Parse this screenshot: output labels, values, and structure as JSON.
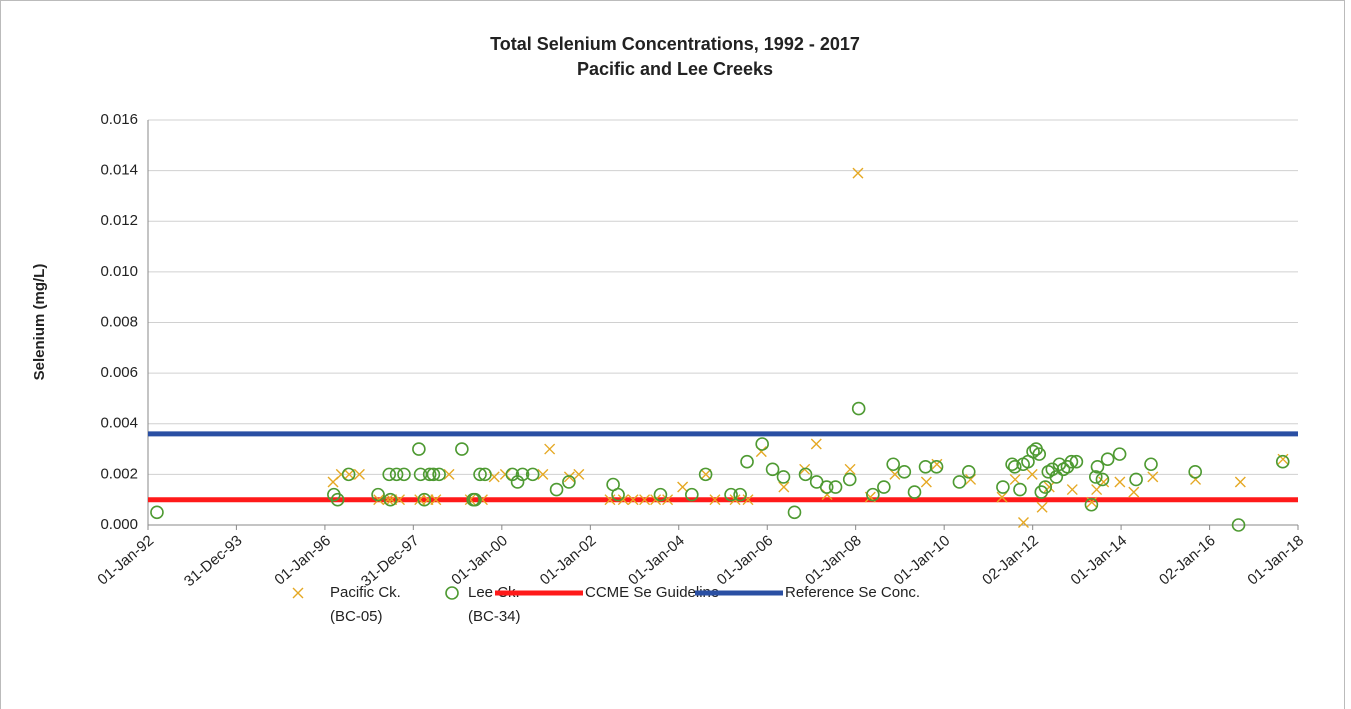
{
  "chart_data": {
    "type": "scatter",
    "title": "Total Selenium Concentrations, 1992 - 2017",
    "subtitle": "Pacific and Lee Creeks",
    "y_label": "Selenium (mg/L)",
    "xlim": [
      "1992-01-01",
      "2018-01-01"
    ],
    "xticks": [
      {
        "value": "1992-01-01",
        "label": "01-Jan-92"
      },
      {
        "value": "1993-12-31",
        "label": "31-Dec-93"
      },
      {
        "value": "1996-01-01",
        "label": "01-Jan-96"
      },
      {
        "value": "1997-12-31",
        "label": "31-Dec-97"
      },
      {
        "value": "2000-01-01",
        "label": "01-Jan-00"
      },
      {
        "value": "2002-01-01",
        "label": "01-Jan-02"
      },
      {
        "value": "2004-01-01",
        "label": "01-Jan-04"
      },
      {
        "value": "2006-01-01",
        "label": "01-Jan-06"
      },
      {
        "value": "2008-01-01",
        "label": "01-Jan-08"
      },
      {
        "value": "2010-01-01",
        "label": "01-Jan-10"
      },
      {
        "value": "2012-01-02",
        "label": "02-Jan-12"
      },
      {
        "value": "2014-01-01",
        "label": "01-Jan-14"
      },
      {
        "value": "2016-01-02",
        "label": "02-Jan-16"
      },
      {
        "value": "2018-01-01",
        "label": "01-Jan-18"
      }
    ],
    "ylim": [
      0,
      0.016
    ],
    "yticks": [
      {
        "value": 0,
        "label": "0.000"
      },
      {
        "value": 0.002,
        "label": "0.002"
      },
      {
        "value": 0.004,
        "label": "0.004"
      },
      {
        "value": 0.006,
        "label": "0.006"
      },
      {
        "value": 0.008,
        "label": "0.008"
      },
      {
        "value": 0.01,
        "label": "0.010"
      },
      {
        "value": 0.012,
        "label": "0.012"
      },
      {
        "value": 0.014,
        "label": "0.014"
      },
      {
        "value": 0.016,
        "label": "0.016"
      }
    ],
    "grid": true,
    "series": [
      {
        "name": [
          "Pacific Ck.",
          "(BC-05)"
        ],
        "marker": "x",
        "color": "#e5a823",
        "x": [
          "1996-03-08",
          "1996-05-15",
          "1996-07-20",
          "1996-10-12",
          "1997-03-20",
          "1997-06-05",
          "1997-07-05",
          "1997-09-08",
          "1998-02-22",
          "1998-05-01",
          "1998-07-05",
          "1998-10-22",
          "1999-04-15",
          "1999-07-25",
          "1999-10-30",
          "2000-01-30",
          "2000-12-05",
          "2001-01-30",
          "2001-07-12",
          "2001-09-28",
          "2002-06-12",
          "2002-09-30",
          "2002-12-20",
          "2003-03-25",
          "2003-06-24",
          "2003-10-01",
          "2004-02-02",
          "2004-08-12",
          "2004-10-26",
          "2005-04-10",
          "2005-07-26",
          "2005-11-13",
          "2006-05-18",
          "2006-11-06",
          "2007-02-10",
          "2007-05-10",
          "2007-11-16",
          "2008-01-20",
          "2008-05-01",
          "2008-11-20",
          "2009-08-07",
          "2009-11-02",
          "2010-08-07",
          "2011-04-24",
          "2011-08-10",
          "2011-10-18",
          "2011-12-29",
          "2012-03-20",
          "2012-05-18",
          "2012-11-24",
          "2013-05-04",
          "2013-06-13",
          "2013-08-10",
          "2013-12-22",
          "2014-04-16",
          "2014-09-20",
          "2015-09-08",
          "2016-09-12",
          "2017-08-30"
        ],
        "values": [
          0.0017,
          0.002,
          0.002,
          0.002,
          0.001,
          0.001,
          0.001,
          0.001,
          0.001,
          0.001,
          0.001,
          0.002,
          0.001,
          0.001,
          0.0019,
          0.002,
          0.002,
          0.003,
          0.0019,
          0.002,
          0.001,
          0.001,
          0.001,
          0.001,
          0.001,
          0.001,
          0.0015,
          0.002,
          0.001,
          0.001,
          0.001,
          0.0029,
          0.0015,
          0.0022,
          0.0032,
          0.0012,
          0.0022,
          0.0139,
          0.0011,
          0.002,
          0.0017,
          0.0024,
          0.0018,
          0.0011,
          0.0018,
          0.0001,
          0.002,
          0.0007,
          0.0015,
          0.0014,
          0.0009,
          0.0014,
          0.0017,
          0.0017,
          0.0013,
          0.0019,
          0.0018,
          0.0017,
          0.0026
        ]
      },
      {
        "name": [
          "Lee Ck.",
          "(BC-34)"
        ],
        "marker": "o",
        "color": "#4e9a32",
        "x": [
          "1992-03-15",
          "1996-03-15",
          "1996-04-15",
          "1996-07-15",
          "1997-03-15",
          "1997-06-15",
          "1997-06-25",
          "1997-08-15",
          "1997-10-15",
          "1998-02-15",
          "1998-03-01",
          "1998-04-01",
          "1998-05-15",
          "1998-06-15",
          "1998-08-01",
          "1999-02-05",
          "1999-05-10",
          "1999-05-25",
          "1999-07-05",
          "1999-08-15",
          "2000-03-28",
          "2000-05-10",
          "2000-06-20",
          "2000-09-12",
          "2001-03-28",
          "2001-07-08",
          "2002-07-08",
          "2002-08-18",
          "2003-08-03",
          "2004-04-18",
          "2004-08-10",
          "2005-03-08",
          "2005-05-22",
          "2005-07-18",
          "2005-11-20",
          "2006-02-14",
          "2006-05-15",
          "2006-08-14",
          "2006-11-13",
          "2007-02-13",
          "2007-05-07",
          "2007-07-19",
          "2007-11-13",
          "2008-01-26",
          "2008-05-22",
          "2008-08-21",
          "2008-11-06",
          "2009-02-06",
          "2009-05-01",
          "2009-07-31",
          "2009-10-30",
          "2010-05-07",
          "2010-07-23",
          "2011-05-01",
          "2011-07-16",
          "2011-08-07",
          "2011-09-19",
          "2011-10-15",
          "2011-11-24",
          "2012-01-05",
          "2012-01-30",
          "2012-02-25",
          "2012-03-13",
          "2012-04-15",
          "2012-05-10",
          "2012-06-12",
          "2012-07-15",
          "2012-08-10",
          "2012-09-12",
          "2012-10-15",
          "2012-11-17",
          "2012-12-28",
          "2013-05-01",
          "2013-06-06",
          "2013-06-20",
          "2013-07-31",
          "2013-09-12",
          "2013-12-20",
          "2014-05-05",
          "2014-09-05",
          "2015-09-05",
          "2016-08-28",
          "2017-08-28"
        ],
        "values": [
          0.0005,
          0.0012,
          0.001,
          0.002,
          0.0012,
          0.002,
          0.001,
          0.002,
          0.002,
          0.003,
          0.002,
          0.001,
          0.002,
          0.002,
          0.002,
          0.003,
          0.001,
          0.001,
          0.002,
          0.002,
          0.002,
          0.0017,
          0.002,
          0.002,
          0.0014,
          0.0017,
          0.0016,
          0.0012,
          0.0012,
          0.0012,
          0.002,
          0.0012,
          0.0012,
          0.0025,
          0.0032,
          0.0022,
          0.0019,
          0.0005,
          0.002,
          0.0017,
          0.0015,
          0.0015,
          0.0018,
          0.0046,
          0.0012,
          0.0015,
          0.0024,
          0.0021,
          0.0013,
          0.0023,
          0.0023,
          0.0017,
          0.0021,
          0.0015,
          0.0024,
          0.0023,
          0.0014,
          0.0024,
          0.0025,
          0.0029,
          0.003,
          0.0028,
          0.0013,
          0.0015,
          0.0021,
          0.0022,
          0.0019,
          0.0024,
          0.0022,
          0.0023,
          0.0025,
          0.0025,
          0.0008,
          0.0019,
          0.0023,
          0.0018,
          0.0026,
          0.0028,
          0.0018,
          0.0024,
          0.0021,
          0,
          0.0025
        ]
      }
    ],
    "lines": [
      {
        "name": "CCME Se Guideline",
        "color": "#ff1a1a",
        "value": 0.001
      },
      {
        "name": "Reference Se Conc.",
        "color": "#2a4fa3",
        "value": 0.0036
      }
    ]
  }
}
